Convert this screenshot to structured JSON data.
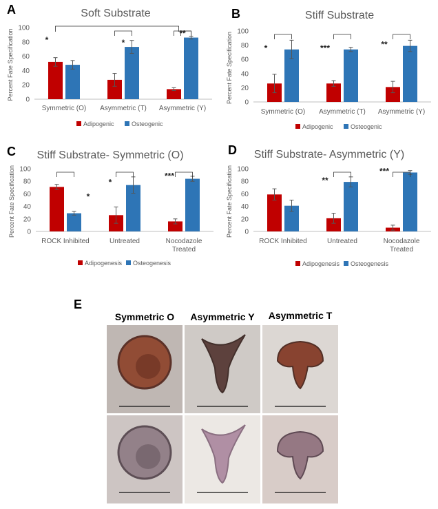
{
  "panels": {
    "a": "A",
    "b": "B",
    "c": "C",
    "d": "D",
    "e": "E"
  },
  "chart_data": [
    {
      "type": "bar",
      "title": "Soft Substrate",
      "ylabel": "Percent Fate Specification",
      "ylim": [
        0,
        100
      ],
      "yticks": [
        0,
        20,
        40,
        60,
        80,
        100
      ],
      "categories": [
        "Symmetric (O)",
        "Asymmetric (T)",
        "Asymmetric (Y)"
      ],
      "series": [
        {
          "name": "Adipogenic",
          "color": "#c00000",
          "values": [
            52,
            27,
            14
          ],
          "errors": [
            6,
            9,
            2
          ]
        },
        {
          "name": "Osteogenic",
          "color": "#2e75b6",
          "values": [
            48,
            73,
            86
          ],
          "errors": [
            6,
            9,
            2
          ]
        }
      ],
      "significance": [
        "*",
        "*",
        "**"
      ],
      "bracket_across": true,
      "grid": false,
      "legend": "bottom"
    },
    {
      "type": "bar",
      "title": "Stiff Substrate",
      "ylabel": "Percent Fate Specification",
      "ylim": [
        0,
        100
      ],
      "yticks": [
        0,
        20,
        40,
        60,
        80,
        100
      ],
      "categories": [
        "Symmetric (O)",
        "Asymmetric (T)",
        "Asymmetric (Y)"
      ],
      "series": [
        {
          "name": "Adipogenic",
          "color": "#c00000",
          "values": [
            26,
            26,
            21
          ],
          "errors": [
            13,
            4,
            8
          ]
        },
        {
          "name": "Osteogenic",
          "color": "#2e75b6",
          "values": [
            74,
            74,
            79
          ],
          "errors": [
            13,
            3,
            8
          ]
        }
      ],
      "significance": [
        "*",
        "***",
        "**"
      ],
      "grid": false,
      "legend": "bottom"
    },
    {
      "type": "bar",
      "title": "Stiff Substrate- Symmetric (O)",
      "ylabel": "Percent Fate Specification",
      "ylim": [
        0,
        100
      ],
      "yticks": [
        0,
        20,
        40,
        60,
        80,
        100
      ],
      "categories": [
        "ROCK Inhibited",
        "Untreated",
        "Nocodazole Treated"
      ],
      "series": [
        {
          "name": "Adipogenesis",
          "color": "#c00000",
          "values": [
            71,
            26,
            16
          ],
          "errors": [
            4,
            13,
            4
          ]
        },
        {
          "name": "Osteogenesis",
          "color": "#2e75b6",
          "values": [
            29,
            74,
            84
          ],
          "errors": [
            3,
            13,
            4
          ]
        }
      ],
      "significance": [
        "*",
        "*",
        "***"
      ],
      "grid": false,
      "legend": "bottom"
    },
    {
      "type": "bar",
      "title": "Stiff Substrate- Asymmetric (Y)",
      "ylabel": "Percent Fate Specification",
      "ylim": [
        0,
        100
      ],
      "yticks": [
        0,
        20,
        40,
        60,
        80,
        100
      ],
      "categories": [
        "ROCK Inhibited",
        "Untreated",
        "Nocodazole Treated"
      ],
      "series": [
        {
          "name": "Adipogenesis",
          "color": "#c00000",
          "values": [
            59,
            21,
            6
          ],
          "errors": [
            9,
            8,
            4
          ]
        },
        {
          "name": "Osteogenesis",
          "color": "#2e75b6",
          "values": [
            41,
            79,
            94
          ],
          "errors": [
            9,
            8,
            3
          ]
        }
      ],
      "significance": [
        "",
        "**",
        "***"
      ],
      "grid": false,
      "legend": "bottom"
    }
  ],
  "figure_e": {
    "columns": [
      "Symmetric O",
      "Asymmetric Y",
      "Asymmetric T"
    ],
    "rows": [
      [
        {
          "bg": "#bfb7b3",
          "shape": "circle",
          "fill": "#8a3a20",
          "edge": "#4a1a10"
        },
        {
          "bg": "#cfcac6",
          "shape": "y",
          "fill": "#4a2a26",
          "edge": "#2a1410"
        },
        {
          "bg": "#dcd7d3",
          "shape": "t",
          "fill": "#7a2a14",
          "edge": "#3a1208"
        }
      ],
      [
        {
          "bg": "#cdc5c3",
          "shape": "circle",
          "fill": "#8a7680",
          "edge": "#4a3a42"
        },
        {
          "bg": "#ece8e4",
          "shape": "y",
          "fill": "#a6809a",
          "edge": "#7a5a70"
        },
        {
          "bg": "#d8ccc8",
          "shape": "t",
          "fill": "#8a6a78",
          "edge": "#4a3440"
        }
      ]
    ]
  }
}
